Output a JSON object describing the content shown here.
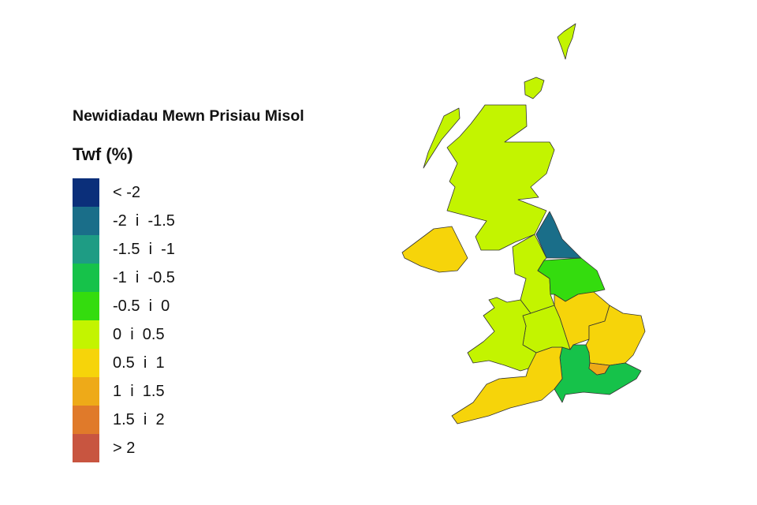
{
  "title": "Newidiadau Mewn Prisiau Misol",
  "legend": {
    "title": "Twf (%)",
    "bins": [
      {
        "label": "< -2",
        "color": "#0b2f7a"
      },
      {
        "label": "-2  i  -1.5",
        "color": "#1a6e89"
      },
      {
        "label": "-1.5  i  -1",
        "color": "#1e9c84"
      },
      {
        "label": "-1  i  -0.5",
        "color": "#16c24a"
      },
      {
        "label": "-0.5  i  0",
        "color": "#34dc0e"
      },
      {
        "label": "0  i  0.5",
        "color": "#c3f400"
      },
      {
        "label": "0.5  i  1",
        "color": "#f6d40a"
      },
      {
        "label": "1  i  1.5",
        "color": "#eeaa18"
      },
      {
        "label": "1.5  i  2",
        "color": "#e07a2a"
      },
      {
        "label": "> 2",
        "color": "#c85540"
      }
    ]
  },
  "regions": {
    "scotland": "0  i  0.5",
    "northern-ireland": "0.5  i  1",
    "north-east": "-2  i  -1.5",
    "north-west": "0  i  0.5",
    "yorkshire-and-the-humber": "-0.5  i  0",
    "east-midlands": "0.5  i  1",
    "west-midlands": "0  i  0.5",
    "wales": "0  i  0.5",
    "east-of-england": "0.5  i  1",
    "london": "1  i  1.5",
    "south-east": "-1  i  -0.5",
    "south-west": "0.5  i  1"
  }
}
